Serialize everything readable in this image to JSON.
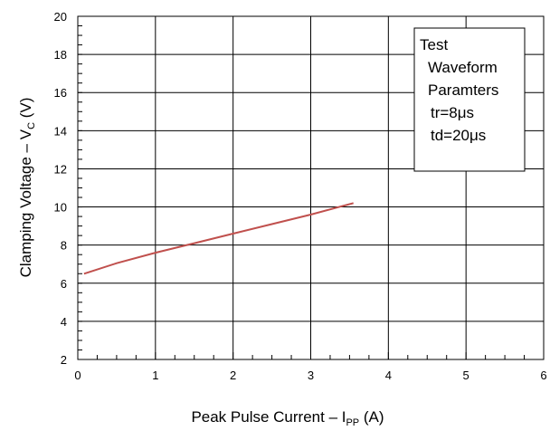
{
  "chart_data": {
    "type": "line",
    "x_axis": {
      "label_main": "Peak Pulse Current – I",
      "label_sub": "PP",
      "label_unit": " (A)",
      "range": [
        0,
        6
      ],
      "ticks": [
        0,
        1,
        2,
        3,
        4,
        5,
        6
      ],
      "minor_step": 0.25
    },
    "y_axis": {
      "label_main": "Clamping Voltage – V",
      "label_sub": "C",
      "label_unit": " (V)",
      "range": [
        2,
        20
      ],
      "ticks": [
        2,
        4,
        6,
        8,
        10,
        12,
        14,
        16,
        18,
        20
      ],
      "minor_step": 0.5
    },
    "grid": true,
    "series": [
      {
        "color": "#c0504d",
        "x": [
          0.08,
          0.5,
          1.0,
          1.5,
          2.0,
          2.5,
          3.0,
          3.55
        ],
        "y": [
          6.5,
          7.05,
          7.6,
          8.1,
          8.6,
          9.1,
          9.6,
          10.2
        ]
      }
    ],
    "annotation_lines": [
      "Test",
      "Waveform",
      "Paramters",
      "tr=8μs",
      "td=20μs"
    ]
  }
}
